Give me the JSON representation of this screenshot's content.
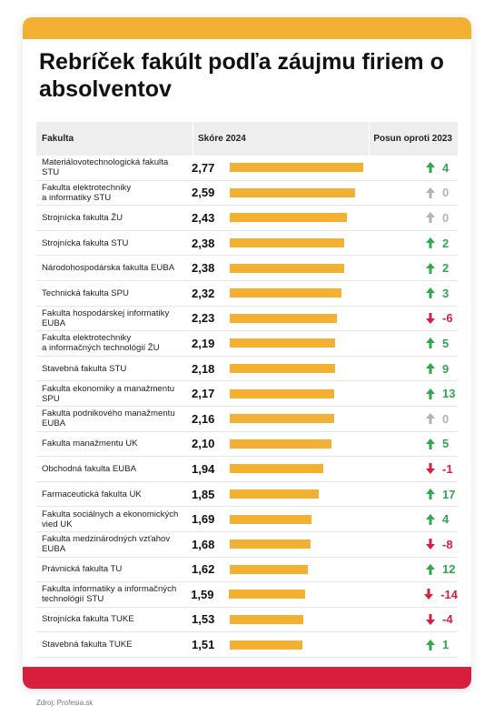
{
  "title": "Rebríček fakúlt podľa záujmu firiem o absolventov",
  "header": {
    "col_faculty": "Fakulta",
    "col_score": "Skóre 2024",
    "col_change": "Posun oproti 2023"
  },
  "source": "Zdroj: Profesia.sk",
  "colors": {
    "bar": "#f3b133",
    "top_band": "#f3b133",
    "bottom_band": "#d81e3c",
    "up": "#2fa84f",
    "down": "#d81e3c",
    "neutral": "#b3b3b3"
  },
  "chart_data": {
    "type": "bar",
    "orientation": "horizontal",
    "title": "Rebríček fakúlt podľa záujmu firiem o absolventov",
    "xlim": [
      0,
      2.9
    ],
    "rows": [
      {
        "faculty": "Materiálovotechnologická fakulta\nSTU",
        "score": 2.77,
        "score_label": "2,77",
        "change": 4,
        "change_label": "4",
        "direction": "up"
      },
      {
        "faculty": "Fakulta elektrotechniky\na informatiky STU",
        "score": 2.59,
        "score_label": "2,59",
        "change": 0,
        "change_label": "0",
        "direction": "neutral"
      },
      {
        "faculty": "Strojnícka fakulta ŽU",
        "score": 2.43,
        "score_label": "2,43",
        "change": 0,
        "change_label": "0",
        "direction": "neutral"
      },
      {
        "faculty": "Strojnícka fakulta STU",
        "score": 2.38,
        "score_label": "2,38",
        "change": 2,
        "change_label": "2",
        "direction": "up"
      },
      {
        "faculty": "Národohospodárska fakulta EUBA",
        "score": 2.38,
        "score_label": "2,38",
        "change": 2,
        "change_label": "2",
        "direction": "up"
      },
      {
        "faculty": "Technická fakulta SPU",
        "score": 2.32,
        "score_label": "2,32",
        "change": 3,
        "change_label": "3",
        "direction": "up"
      },
      {
        "faculty": "Fakulta hospodárskej informatiky\nEUBA",
        "score": 2.23,
        "score_label": "2,23",
        "change": -6,
        "change_label": "-6",
        "direction": "down"
      },
      {
        "faculty": "Fakulta elektrotechniky\na informačných technológií ŽU",
        "score": 2.19,
        "score_label": "2,19",
        "change": 5,
        "change_label": "5",
        "direction": "up"
      },
      {
        "faculty": "Stavebná fakulta STU",
        "score": 2.18,
        "score_label": "2,18",
        "change": 9,
        "change_label": "9",
        "direction": "up"
      },
      {
        "faculty": "Fakulta ekonomiky a manažmentu\nSPU",
        "score": 2.17,
        "score_label": "2,17",
        "change": 13,
        "change_label": "13",
        "direction": "up"
      },
      {
        "faculty": "Fakulta podnikového manažmentu\nEUBA",
        "score": 2.16,
        "score_label": "2,16",
        "change": 0,
        "change_label": "0",
        "direction": "neutral"
      },
      {
        "faculty": "Fakulta manažmentu UK",
        "score": 2.1,
        "score_label": "2,10",
        "change": 5,
        "change_label": "5",
        "direction": "up"
      },
      {
        "faculty": "Obchodná fakulta EUBA",
        "score": 1.94,
        "score_label": "1,94",
        "change": -1,
        "change_label": "-1",
        "direction": "down"
      },
      {
        "faculty": "Farmaceutická fakulta UK",
        "score": 1.85,
        "score_label": "1,85",
        "change": 17,
        "change_label": "17",
        "direction": "up"
      },
      {
        "faculty": "Fakulta sociálnych a ekonomických\nvied UK",
        "score": 1.69,
        "score_label": "1,69",
        "change": 4,
        "change_label": "4",
        "direction": "up"
      },
      {
        "faculty": "Fakulta medzinárodných vzťahov\nEUBA",
        "score": 1.68,
        "score_label": "1,68",
        "change": -8,
        "change_label": "-8",
        "direction": "down"
      },
      {
        "faculty": "Právnická fakulta TU",
        "score": 1.62,
        "score_label": "1,62",
        "change": 12,
        "change_label": "12",
        "direction": "up"
      },
      {
        "faculty": "Fakulta informatiky a informačných\ntechnológií STU",
        "score": 1.59,
        "score_label": "1,59",
        "change": -14,
        "change_label": "-14",
        "direction": "down"
      },
      {
        "faculty": "Strojnícka fakulta TUKE",
        "score": 1.53,
        "score_label": "1,53",
        "change": -4,
        "change_label": "-4",
        "direction": "down"
      },
      {
        "faculty": "Stavebná fakulta TUKE",
        "score": 1.51,
        "score_label": "1,51",
        "change": 1,
        "change_label": "1",
        "direction": "up"
      }
    ]
  }
}
